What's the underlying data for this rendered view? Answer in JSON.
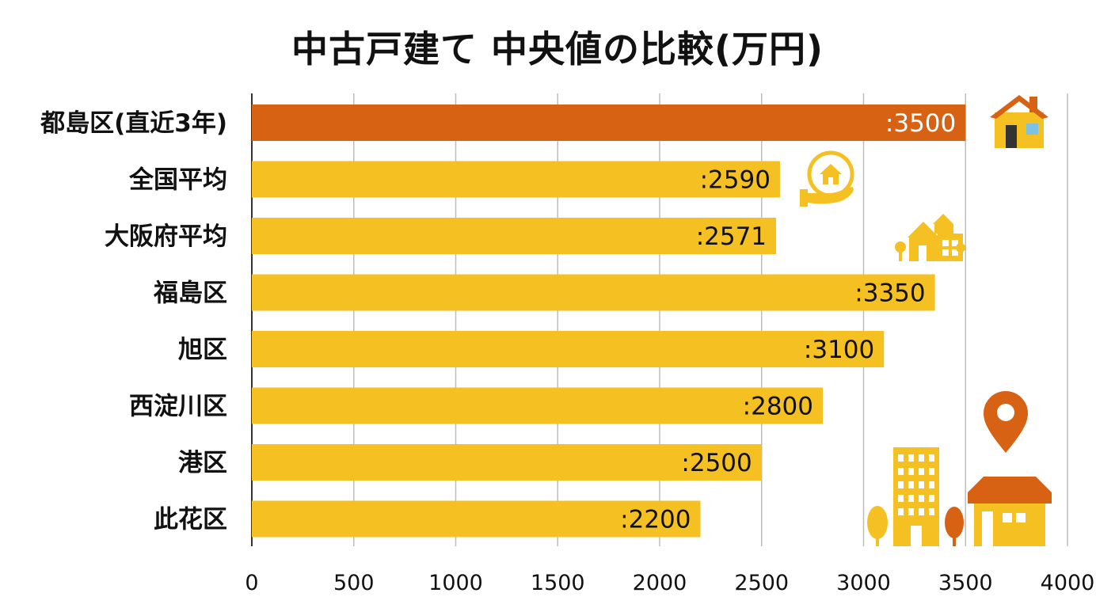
{
  "title": "中古戸建て 中央値の比較(万円)",
  "chart_data": {
    "type": "bar",
    "orientation": "horizontal",
    "title": "中古戸建て 中央値の比較(万円)",
    "xlabel": "",
    "ylabel": "",
    "xlim": [
      0,
      4000
    ],
    "ticks": [
      0,
      500,
      1000,
      1500,
      2000,
      2500,
      3000,
      3500,
      4000
    ],
    "grid": true,
    "categories": [
      "都島区(直近3年)",
      "全国平均",
      "大阪府平均",
      "福島区",
      "旭区",
      "西淀川区",
      "港区",
      "此花区"
    ],
    "values": [
      3500,
      2590,
      2571,
      3350,
      3100,
      2800,
      2500,
      2200
    ],
    "value_labels": [
      ":3500",
      ":2590",
      ":2571",
      ":3350",
      ":3100",
      ":2800",
      ":2500",
      ":2200"
    ],
    "highlight_index": 0,
    "colors": {
      "bar": "#F5C021",
      "highlight": "#D86214",
      "grid": "#BDBDBD",
      "axis": "#333333"
    }
  },
  "icons": [
    "house-icon",
    "hand-house-icon",
    "residential-house-icon",
    "map-pin-icon",
    "building-icon",
    "tree-icon",
    "home-icon"
  ]
}
